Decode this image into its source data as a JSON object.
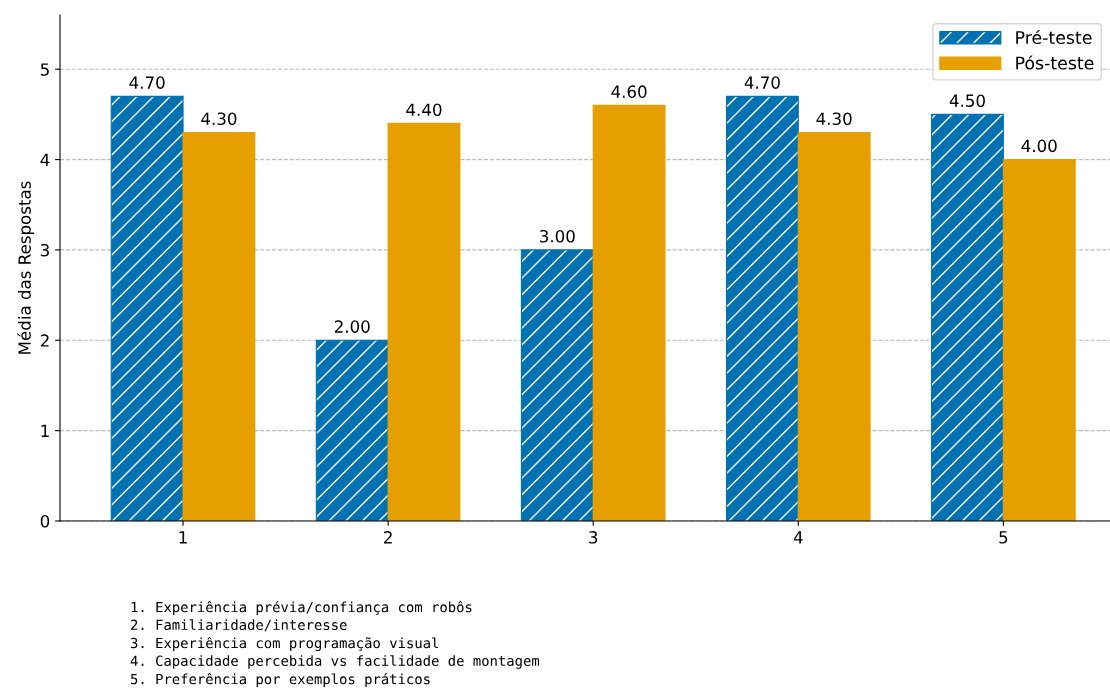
{
  "chart_data": {
    "type": "bar",
    "ylabel": "Média das Respostas",
    "categories": [
      "1",
      "2",
      "3",
      "4",
      "5"
    ],
    "series": [
      {
        "name": "Pré-teste",
        "color": "#0072b2",
        "values": [
          4.7,
          2.0,
          3.0,
          4.7,
          4.5
        ],
        "value_labels": [
          "4.70",
          "2.00",
          "3.00",
          "4.70",
          "4.50"
        ]
      },
      {
        "name": "Pós-teste",
        "color": "#e69f00",
        "values": [
          4.3,
          4.4,
          4.6,
          4.3,
          4.0
        ],
        "value_labels": [
          "4.30",
          "4.40",
          "4.60",
          "4.30",
          "4.00"
        ]
      }
    ],
    "ylim": [
      0,
      5.6
    ],
    "yticks": [
      0,
      1,
      2,
      3,
      4,
      5
    ],
    "grid": "y",
    "legend": "top right",
    "annotations": [
      "1. Experiência prévia/confiança com robôs",
      "2. Familiaridade/interesse",
      "3. Experiência com programação visual",
      "4. Capacidade percebida vs facilidade de montagem",
      "5. Preferência por exemplos práticos"
    ]
  }
}
